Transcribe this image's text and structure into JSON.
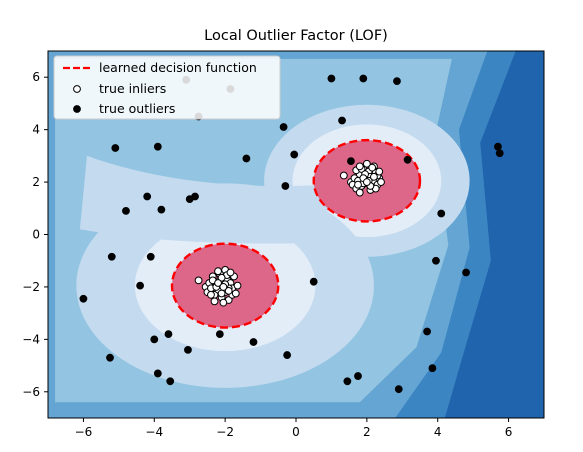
{
  "chart_data": {
    "type": "scatter",
    "title": "Local Outlier Factor (LOF)",
    "xlabel": "",
    "ylabel": "",
    "xlim": [
      -7,
      7
    ],
    "ylim": [
      -7,
      7
    ],
    "xticks": [
      -6,
      -4,
      -2,
      0,
      2,
      4,
      6
    ],
    "yticks": [
      -6,
      -4,
      -2,
      0,
      2,
      4,
      6
    ],
    "xtick_labels": [
      "−6",
      "−4",
      "−2",
      "0",
      "2",
      "4",
      "6"
    ],
    "ytick_labels": [
      "−6",
      "−4",
      "−2",
      "0",
      "2",
      "4",
      "6"
    ],
    "grid": false,
    "legend": {
      "placement": "upper-left",
      "entries": [
        {
          "label": "learned decision function",
          "style": "dashed-line",
          "color": "#ff0000"
        },
        {
          "label": "true inliers",
          "style": "marker",
          "face": "#ffffff",
          "edge": "#000000"
        },
        {
          "label": "true outliers",
          "style": "marker",
          "face": "#000000",
          "edge": "#000000"
        }
      ]
    },
    "colors": {
      "decision_region": "#dd6789",
      "decision_line": "#ff0000",
      "contour_levels": [
        "#2064ae",
        "#3b86c2",
        "#64a5d3",
        "#93c5e2",
        "#c3daef",
        "#e3edf8"
      ]
    },
    "clusters": [
      {
        "center": [
          2.0,
          2.05
        ],
        "radius": [
          1.5,
          1.55
        ]
      },
      {
        "center": [
          -2.0,
          -1.95
        ],
        "radius": [
          1.5,
          1.6
        ]
      }
    ],
    "outliers": {
      "x": [
        -6.0,
        -5.2,
        -5.1,
        -4.8,
        -4.4,
        -4.2,
        -4.0,
        -3.9,
        -3.8,
        -4.1,
        -3.6,
        -3.9,
        -3.55,
        -3.1,
        -3.0,
        -2.85,
        -2.75,
        -3.05,
        -2.15,
        -1.85,
        -1.4,
        -1.2,
        -0.35,
        -0.3,
        -0.25,
        -0.05,
        0.5,
        1.0,
        1.3,
        1.45,
        1.55,
        1.75,
        1.9,
        2.85,
        2.9,
        3.15,
        3.7,
        3.85,
        3.95,
        4.1,
        4.8,
        5.7,
        5.75,
        -5.25
      ],
      "x_note": "",
      "y": [
        -2.45,
        -0.85,
        3.3,
        0.9,
        -1.95,
        1.45,
        -4.0,
        3.35,
        0.95,
        -0.85,
        -3.8,
        -5.3,
        -5.6,
        5.9,
        1.35,
        1.45,
        4.5,
        -4.4,
        -3.8,
        5.55,
        2.9,
        -4.1,
        4.1,
        1.85,
        -4.6,
        3.05,
        -1.8,
        5.95,
        4.35,
        -5.6,
        2.8,
        -5.4,
        5.95,
        5.85,
        -5.9,
        2.85,
        -3.7,
        -5.1,
        -1.0,
        0.8,
        -1.45,
        3.35,
        3.1,
        -4.7
      ],
      "y_note": ""
    },
    "inliers_cluster_1": {
      "x": [
        1.35,
        1.55,
        1.6,
        1.65,
        1.7,
        1.75,
        1.8,
        1.85,
        1.9,
        1.95,
        2.0,
        2.05,
        2.1,
        2.15,
        2.2,
        2.25,
        2.3,
        2.35,
        2.4,
        1.7,
        1.8,
        1.9,
        2.0,
        2.1,
        2.2,
        2.3,
        1.85,
        2.05,
        2.25,
        1.95,
        2.15,
        1.75,
        2.35,
        1.9,
        2.1,
        2.0,
        1.8,
        2.2
      ],
      "y": [
        2.25,
        2.0,
        1.9,
        2.15,
        1.75,
        2.05,
        2.3,
        1.85,
        2.55,
        2.1,
        1.95,
        2.4,
        2.2,
        1.8,
        2.05,
        2.35,
        1.9,
        2.15,
        2.0,
        2.45,
        1.6,
        1.95,
        2.7,
        1.7,
        2.6,
        2.25,
        2.5,
        2.05,
        1.75,
        2.3,
        2.55,
        1.9,
        2.4,
        2.15,
        1.85,
        2.0,
        2.6,
        2.2
      ]
    },
    "inliers_cluster_2": {
      "x": [
        -2.75,
        -2.55,
        -2.5,
        -2.45,
        -2.4,
        -2.35,
        -2.3,
        -2.25,
        -2.2,
        -2.15,
        -2.1,
        -2.05,
        -2.0,
        -1.95,
        -1.9,
        -1.85,
        -1.8,
        -1.75,
        -1.65,
        -2.3,
        -2.2,
        -2.1,
        -2.0,
        -1.9,
        -1.8,
        -2.15,
        -1.95,
        -2.25,
        -2.05,
        -1.85,
        -2.35,
        -2.0,
        -1.7,
        -2.4,
        -2.1,
        -1.9,
        -2.2,
        -2.05
      ],
      "y": [
        -1.75,
        -2.0,
        -2.2,
        -1.85,
        -2.05,
        -1.6,
        -2.3,
        -1.9,
        -2.1,
        -1.5,
        -2.4,
        -1.95,
        -2.2,
        -1.7,
        -2.5,
        -1.85,
        -2.05,
        -1.6,
        -1.95,
        -2.55,
        -1.4,
        -2.25,
        -1.35,
        -2.05,
        -2.3,
        -1.75,
        -1.55,
        -2.0,
        -2.6,
        -1.45,
        -1.75,
        -1.9,
        -2.25,
        -2.3,
        -1.65,
        -2.15,
        -1.85,
        -2.0
      ]
    }
  }
}
